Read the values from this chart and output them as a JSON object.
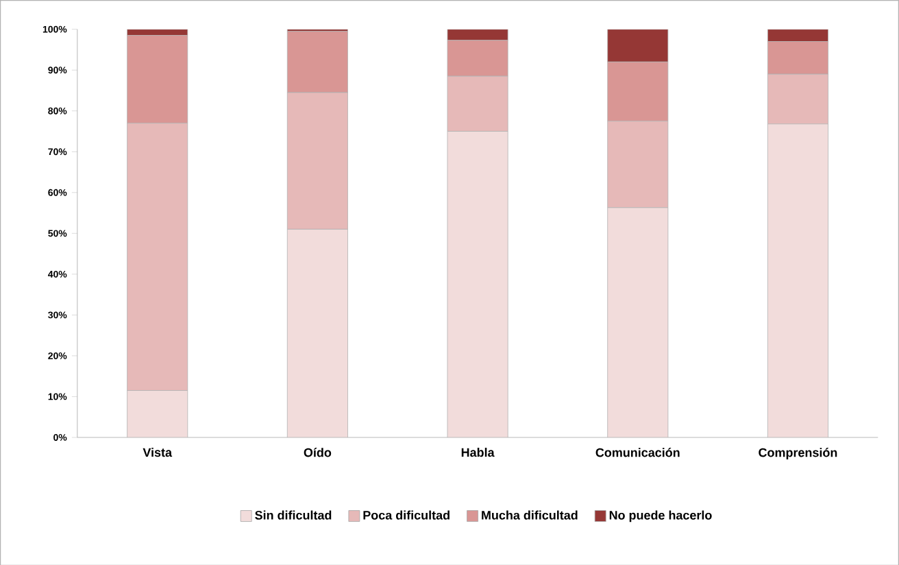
{
  "chart_data": {
    "type": "bar",
    "stacked": true,
    "categories": [
      "Vista",
      "Oído",
      "Habla",
      "Comunicación",
      "Comprensión"
    ],
    "series": [
      {
        "name": "Sin dificultad",
        "color": "#f2dcdb",
        "values": [
          11.5,
          51,
          75,
          56.3,
          76.8
        ]
      },
      {
        "name": "Poca dificultad",
        "color": "#e6b9b8",
        "values": [
          65.5,
          33.5,
          13.5,
          21.2,
          12.2
        ]
      },
      {
        "name": "Mucha dificultad",
        "color": "#d99694",
        "values": [
          21.5,
          15,
          8.8,
          14.5,
          8
        ]
      },
      {
        "name": "No puede hacerlo",
        "color": "#953735",
        "values": [
          1.5,
          0.5,
          2.7,
          8,
          3
        ]
      }
    ],
    "ylim": [
      0,
      100
    ],
    "yticks": [
      {
        "value": 0,
        "label": "0%"
      },
      {
        "value": 10,
        "label": "10%"
      },
      {
        "value": 20,
        "label": "20%"
      },
      {
        "value": 30,
        "label": "30%"
      },
      {
        "value": 40,
        "label": "40%"
      },
      {
        "value": 50,
        "label": "50%"
      },
      {
        "value": 60,
        "label": "60%"
      },
      {
        "value": 70,
        "label": "70%"
      },
      {
        "value": 80,
        "label": "80%"
      },
      {
        "value": 90,
        "label": "90%"
      },
      {
        "value": 100,
        "label": "100%"
      }
    ],
    "legend": "bottom"
  }
}
